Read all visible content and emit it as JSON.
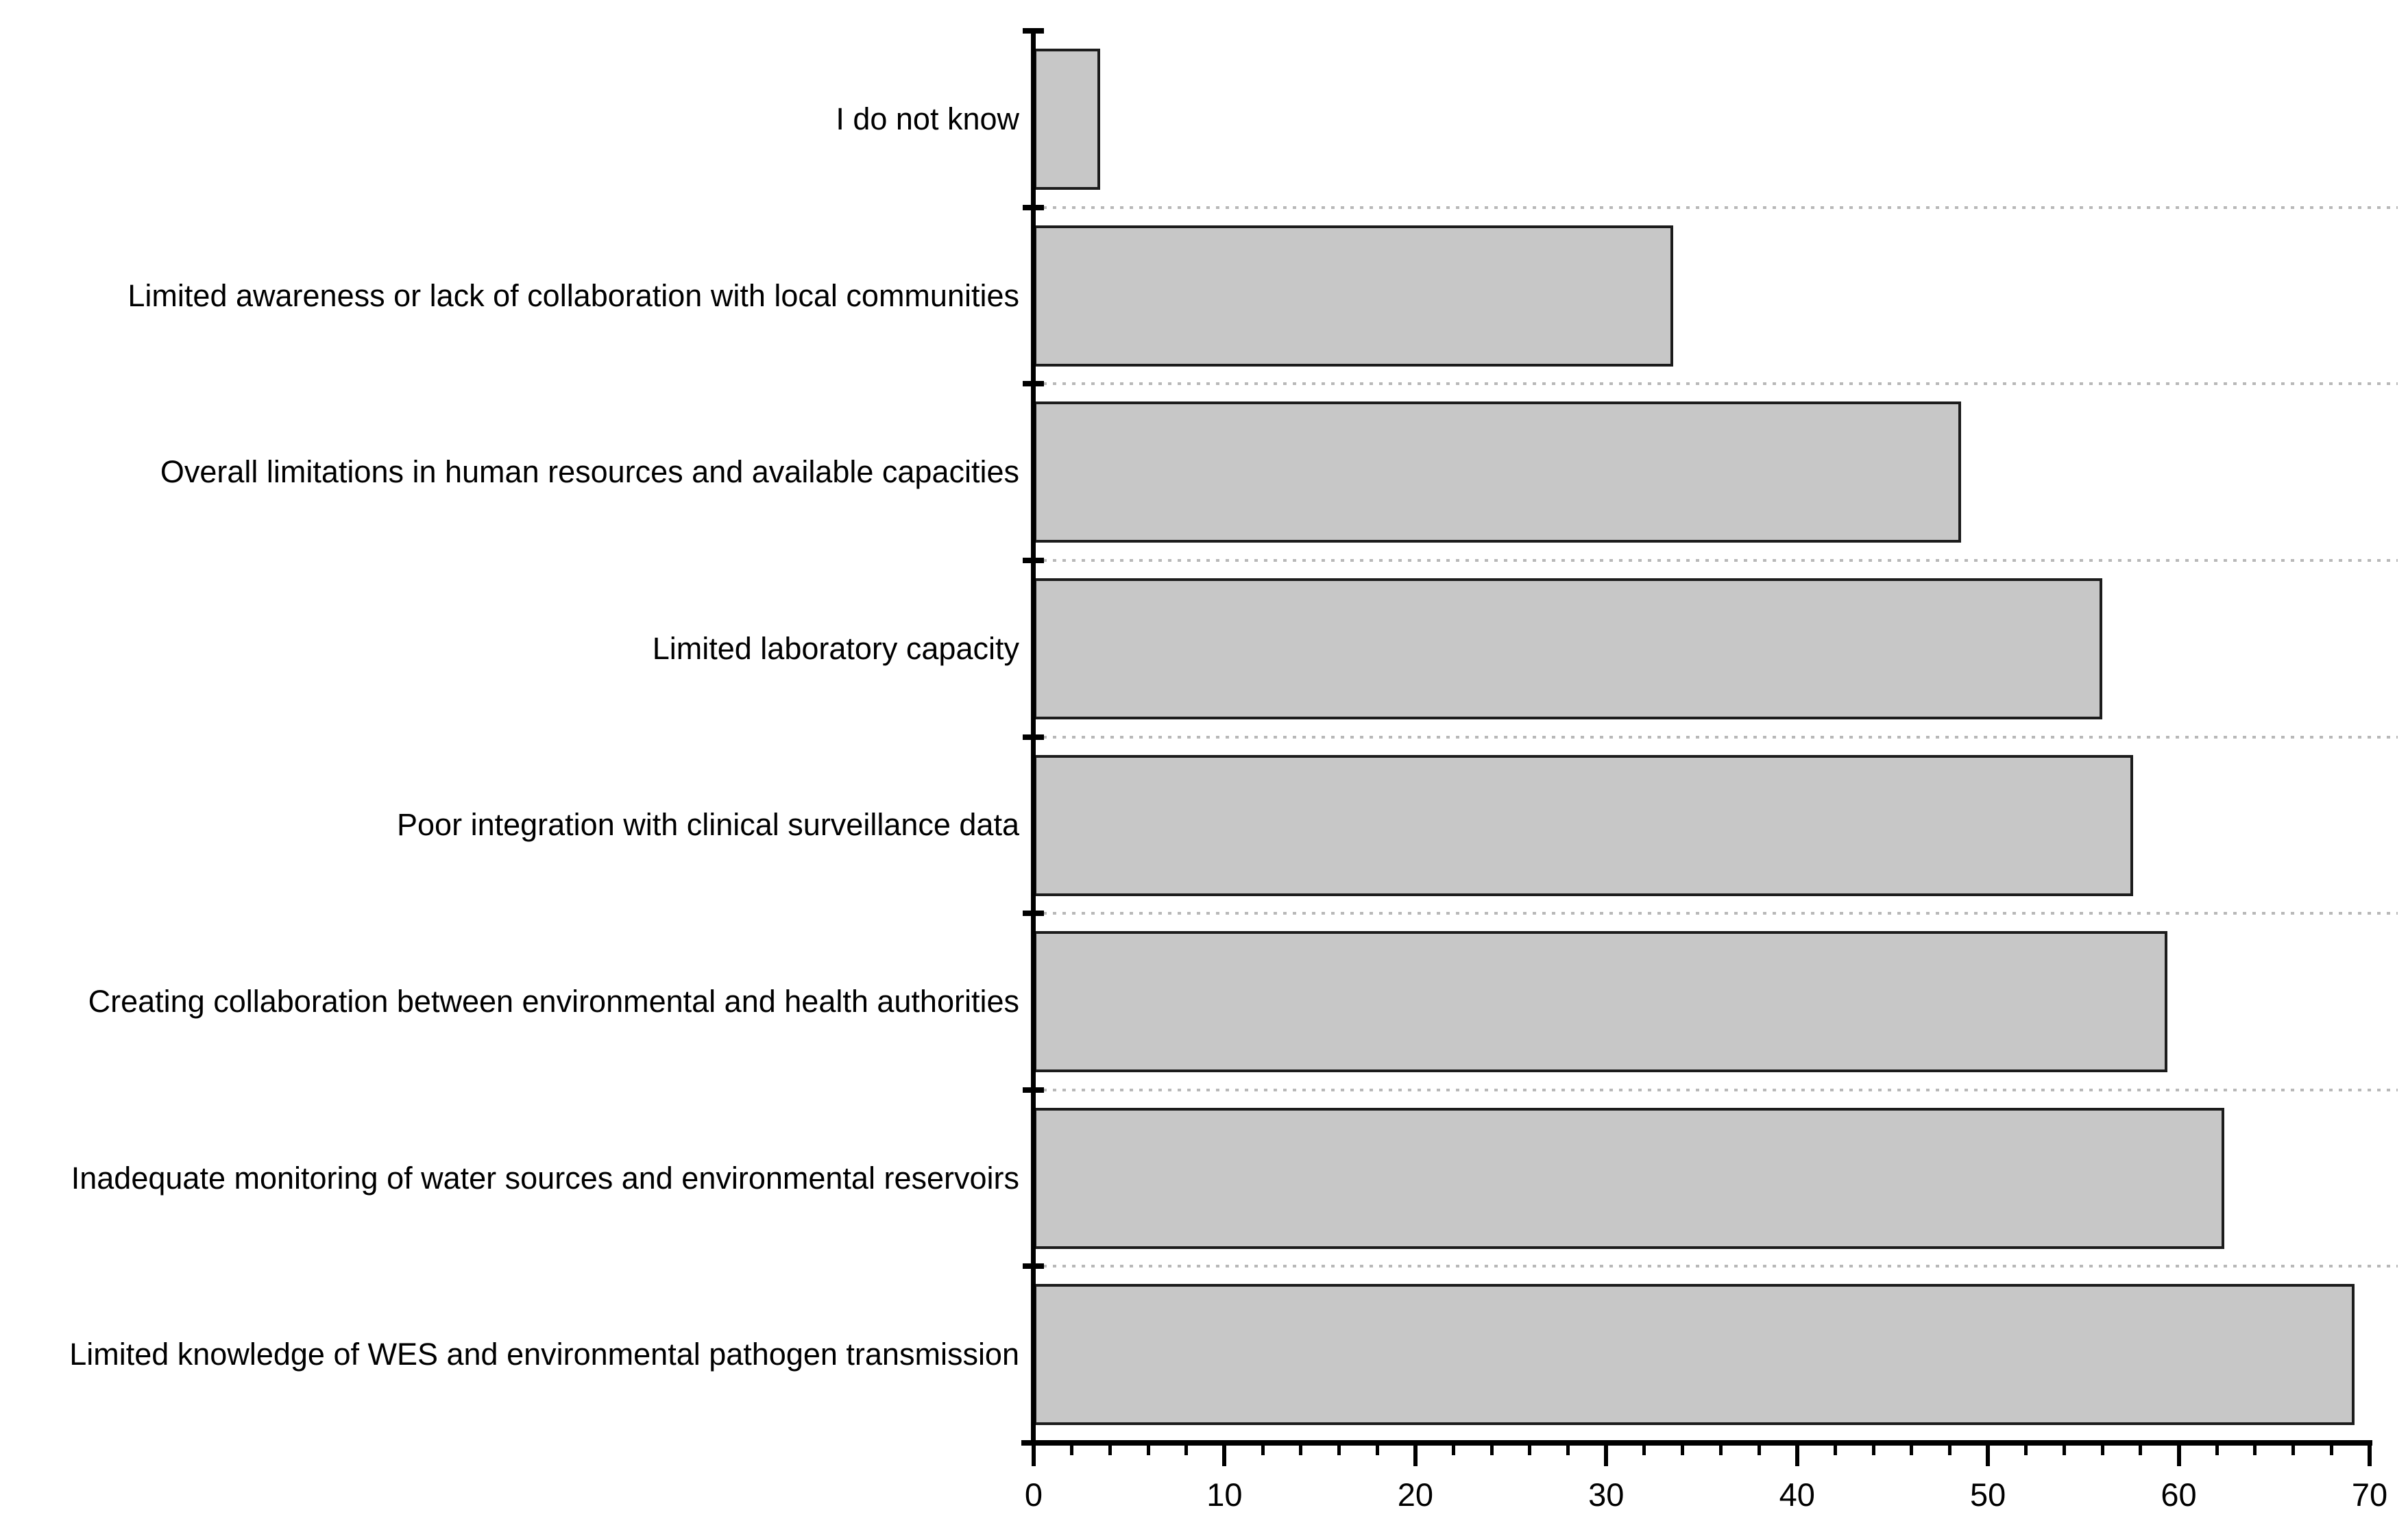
{
  "chart_data": {
    "type": "bar",
    "orientation": "horizontal",
    "title": "",
    "xlabel": "",
    "ylabel": "",
    "categories": [
      "I do not know",
      "Limited awareness or lack of collaboration with local communities",
      "Overall limitations in human resources and available capacities",
      "Limited laboratory capacity",
      "Poor integration with clinical surveillance data",
      "Creating collaboration between environmental and health authorities",
      "Inadequate monitoring of water sources and environmental reservoirs",
      "Limited knowledge of WES and environmental pathogen transmission"
    ],
    "values": [
      3.5,
      33.5,
      48.6,
      56.0,
      57.6,
      59.4,
      62.4,
      69.2
    ],
    "xlim": [
      0,
      70
    ],
    "x_major_ticks": [
      0,
      10,
      20,
      30,
      40,
      50,
      60,
      70
    ],
    "x_tick_labels": [
      "0",
      "10",
      "20",
      "30",
      "40",
      "50",
      "60",
      "70"
    ],
    "x_minor_tick_step": 2,
    "grid": "dotted horizontal separator lines between category slots",
    "legend": "none",
    "bar_order": "top to bottom as listed"
  },
  "colors": {
    "background": "#ffffff",
    "bar_fill": "#c7c7c7",
    "bar_border": "#1c1c1c",
    "axis": "#000000",
    "separator_dots": "#b8b8b8",
    "text": "#000000"
  }
}
